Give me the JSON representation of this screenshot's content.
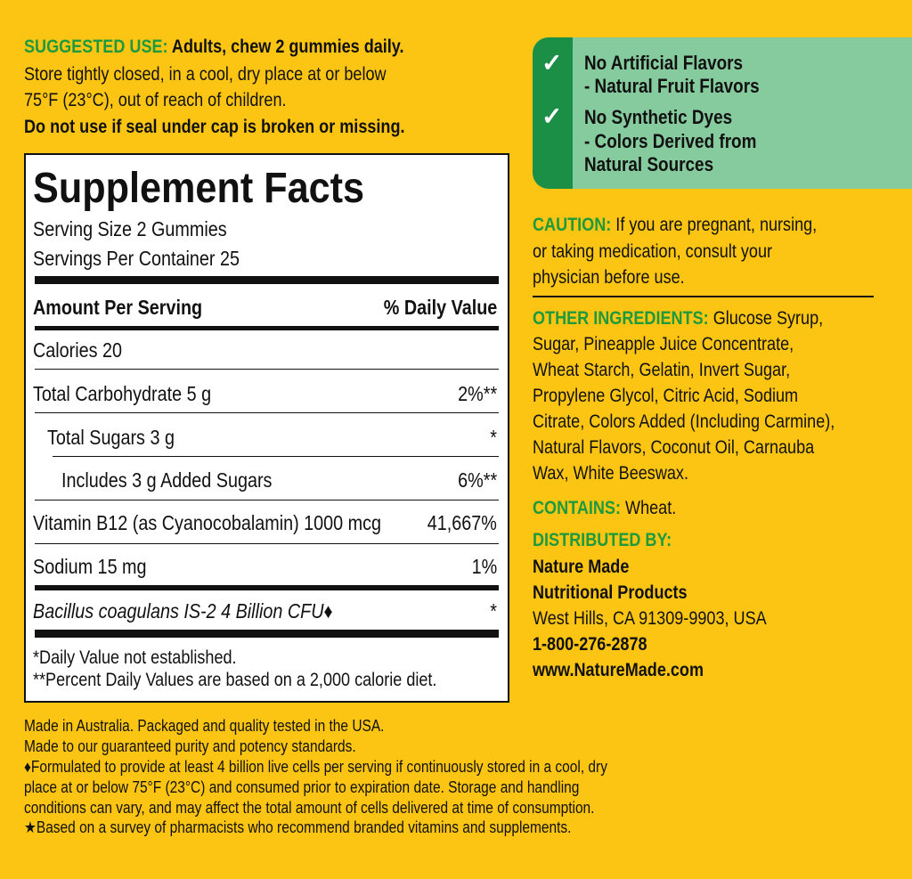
{
  "colors": {
    "background": "#FDC513",
    "green_heading": "#1e9a3d",
    "badge_dark": "#1B8F45",
    "badge_light": "#86CB9E"
  },
  "suggested_use": {
    "label": "SUGGESTED USE:",
    "line1": "Adults, chew 2 gummies daily.",
    "line2": "Store tightly closed, in a cool, dry place at or below",
    "line3": "75°F (23°C), out of reach of children.",
    "line4": "Do not use if seal under cap is broken or missing."
  },
  "facts": {
    "title": "Supplement Facts",
    "serving_size": "Serving Size 2 Gummies",
    "servings_per_container": "Servings Per Container 25",
    "amount_header": "Amount Per Serving",
    "dv_header": "% Daily Value",
    "rows": [
      {
        "name": "Calories  20",
        "dv": ""
      },
      {
        "name": "Total Carbohydrate  5 g",
        "dv": "2%**"
      },
      {
        "name": "Total Sugars  3 g",
        "dv": "*"
      },
      {
        "name": "Includes  3 g Added Sugars",
        "dv": "6%**"
      },
      {
        "name": "Vitamin B12 (as Cyanocobalamin)  1000 mcg",
        "dv": "41,667%"
      },
      {
        "name": "Sodium  15 mg",
        "dv": "1%"
      },
      {
        "name": "Bacillus coagulans IS-2  4 Billion CFU♦",
        "dv": "*"
      }
    ],
    "footnote1": "*Daily Value not established.",
    "footnote2": "**Percent Daily Values are based on a 2,000 calorie diet."
  },
  "badges": [
    {
      "icon": "check-icon",
      "line1": "No Artificial Flavors",
      "line2": "- Natural Fruit Flavors"
    },
    {
      "icon": "check-icon",
      "line1": "No Synthetic Dyes",
      "line2": "- Colors Derived from",
      "line3": "Natural Sources"
    }
  ],
  "caution": {
    "label": "CAUTION:",
    "line1": "If you are pregnant, nursing,",
    "line2": "or taking medication, consult your",
    "line3": "physician before use."
  },
  "other_ingredients": {
    "label": "OTHER INGREDIENTS:",
    "lines": [
      "Glucose Syrup,",
      "Sugar, Pineapple Juice Concentrate,",
      "Wheat Starch, Gelatin, Invert Sugar,",
      "Propylene Glycol, Citric Acid, Sodium",
      "Citrate, Colors Added (Including Carmine),",
      "Natural Flavors, Coconut Oil, Carnauba",
      "Wax, White Beeswax."
    ]
  },
  "contains": {
    "label": "CONTAINS:",
    "value": "Wheat."
  },
  "distributor": {
    "label": "DISTRIBUTED BY:",
    "name1": "Nature Made",
    "name2": "Nutritional Products",
    "address": "West Hills, CA 91309-9903, USA",
    "phone": "1-800-276-2878",
    "website": "www.NatureMade.com"
  },
  "footer": [
    "Made in Australia. Packaged and quality tested in the USA.",
    "Made to our guaranteed purity and potency standards.",
    "♦Formulated to provide at least 4 billion live cells per serving if continuously stored in a cool, dry",
    "place at or below 75°F (23°C) and consumed prior to expiration date. Storage and handling",
    "conditions can vary, and may affect the total amount of cells delivered at time of consumption.",
    "★Based on a survey of pharmacists who recommend branded vitamins and supplements."
  ]
}
